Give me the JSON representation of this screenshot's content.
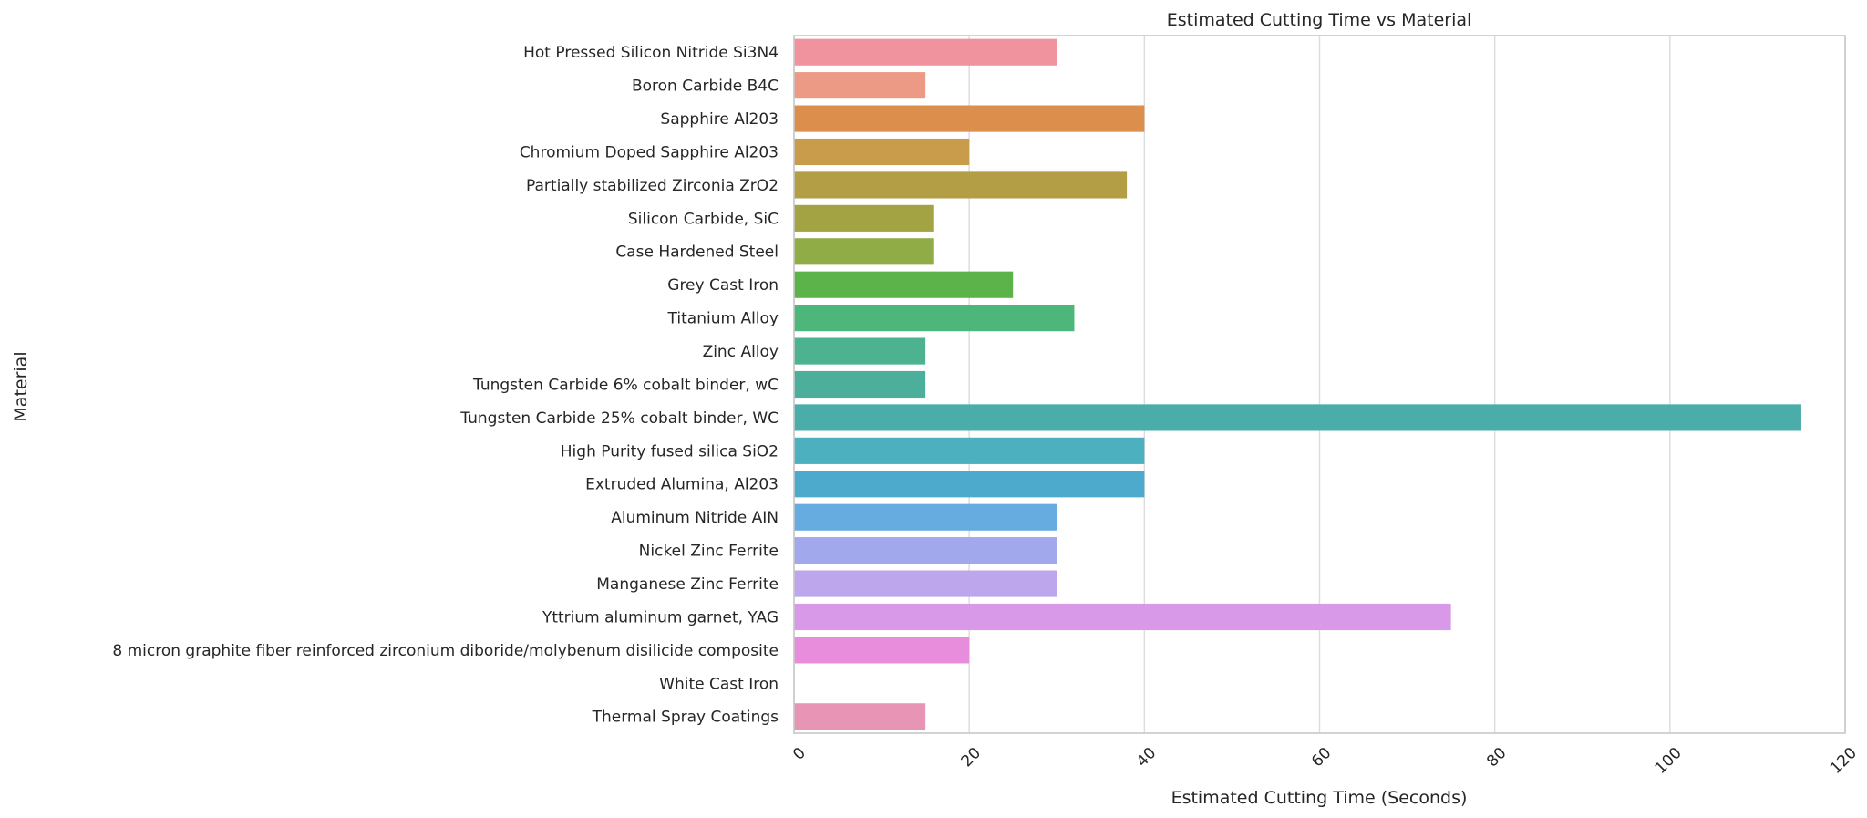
{
  "chart_data": {
    "type": "bar",
    "orientation": "horizontal",
    "title": "Estimated Cutting Time vs Material",
    "xlabel": "Estimated Cutting Time (Seconds)",
    "ylabel": "Material",
    "xlim": [
      0,
      120
    ],
    "xticks": [
      0,
      20,
      40,
      60,
      80,
      100,
      120
    ],
    "grid": "vertical",
    "categories": [
      "Hot Pressed Silicon Nitride Si3N4",
      "Boron Carbide B4C",
      "Sapphire Al203",
      "Chromium Doped Sapphire Al203",
      "Partially stabilized Zirconia ZrO2",
      "Silicon Carbide, SiC",
      "Case Hardened Steel",
      "Grey Cast Iron",
      "Titanium Alloy",
      "Zinc Alloy",
      "Tungsten Carbide 6% cobalt binder, wC",
      "Tungsten Carbide 25% cobalt binder, WC",
      "High Purity fused silica SiO2",
      "Extruded Alumina, Al203",
      "Aluminum Nitride AIN",
      "Nickel Zinc Ferrite",
      "Manganese Zinc Ferrite",
      "Yttrium aluminum garnet, YAG",
      "8 micron graphite fiber reinforced zirconium diboride/molybenum disilicide composite",
      "White Cast Iron",
      "Thermal Spray Coatings"
    ],
    "values": [
      30,
      15,
      40,
      20,
      38,
      16,
      16,
      25,
      32,
      15,
      15,
      115,
      40,
      40,
      30,
      30,
      30,
      75,
      20,
      0,
      15
    ],
    "colors": [
      "#f0939e",
      "#ec9a85",
      "#dc8f4c",
      "#c89c4a",
      "#b39d45",
      "#a3a343",
      "#8fac46",
      "#5bb34a",
      "#4db67a",
      "#4db28f",
      "#4baf9c",
      "#4bada9",
      "#4cb0bf",
      "#4daacc",
      "#66ace0",
      "#a2a8ec",
      "#bea6ec",
      "#d89ae8",
      "#e88ddc",
      "#eb8fcc",
      "#e895b5"
    ]
  }
}
